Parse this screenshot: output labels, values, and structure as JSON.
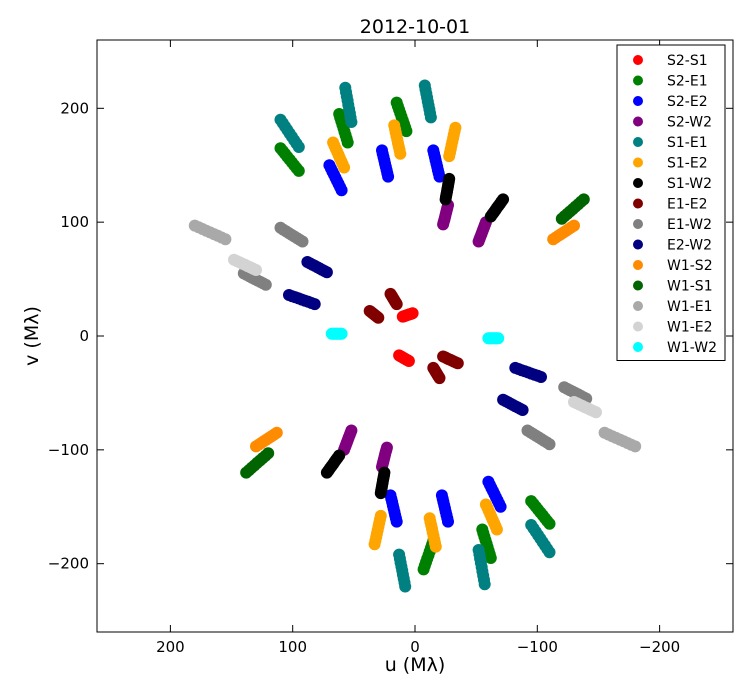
{
  "chart_data": {
    "type": "scatter",
    "title": "2012-10-01",
    "xlabel": "u (Mλ)",
    "ylabel": "v (Mλ)",
    "xlim": [
      260,
      -260
    ],
    "ylim": [
      -260,
      260
    ],
    "x_reversed": true,
    "xticks": [
      200,
      100,
      0,
      -100,
      -200
    ],
    "xtick_labels": [
      "200",
      "100",
      "0",
      "−100",
      "−200"
    ],
    "yticks": [
      200,
      100,
      0,
      -100,
      -200
    ],
    "ytick_labels": [
      "200",
      "100",
      "0",
      "−100",
      "−200"
    ],
    "grid": false,
    "legend_position": "top-right",
    "series": [
      {
        "name": "S2-S1",
        "color": "#ff0000",
        "tracks": [
          [
            [
              2,
              20
            ],
            [
              10,
              17
            ]
          ],
          [
            [
              13,
              -17
            ],
            [
              5,
              -22
            ]
          ]
        ]
      },
      {
        "name": "S2-E1",
        "color": "#008000",
        "tracks": [
          [
            [
              110,
              165
            ],
            [
              95,
              145
            ]
          ],
          [
            [
              62,
              195
            ],
            [
              55,
              170
            ]
          ],
          [
            [
              15,
              205
            ],
            [
              7,
              180
            ]
          ],
          [
            [
              -7,
              -205
            ],
            [
              -15,
              -180
            ]
          ],
          [
            [
              -55,
              -170
            ],
            [
              -62,
              -195
            ]
          ],
          [
            [
              -95,
              -145
            ],
            [
              -110,
              -165
            ]
          ]
        ]
      },
      {
        "name": "S2-E2",
        "color": "#0000ff",
        "tracks": [
          [
            [
              70,
              150
            ],
            [
              60,
              128
            ]
          ],
          [
            [
              27,
              163
            ],
            [
              22,
              140
            ]
          ],
          [
            [
              -15,
              163
            ],
            [
              -20,
              140
            ]
          ],
          [
            [
              20,
              -140
            ],
            [
              15,
              -163
            ]
          ],
          [
            [
              -22,
              -140
            ],
            [
              -27,
              -163
            ]
          ],
          [
            [
              -60,
              -128
            ],
            [
              -70,
              -150
            ]
          ]
        ]
      },
      {
        "name": "S2-W2",
        "color": "#800080",
        "tracks": [
          [
            [
              -27,
              115
            ],
            [
              -23,
              98
            ]
          ],
          [
            [
              -58,
              100
            ],
            [
              -52,
              83
            ]
          ],
          [
            [
              52,
              -83
            ],
            [
              58,
              -100
            ]
          ],
          [
            [
              23,
              -98
            ],
            [
              27,
              -115
            ]
          ]
        ]
      },
      {
        "name": "S1-E1",
        "color": "#008080",
        "tracks": [
          [
            [
              110,
              190
            ],
            [
              95,
              166
            ]
          ],
          [
            [
              57,
              218
            ],
            [
              52,
              188
            ]
          ],
          [
            [
              -8,
              220
            ],
            [
              -13,
              192
            ]
          ],
          [
            [
              13,
              -192
            ],
            [
              8,
              -220
            ]
          ],
          [
            [
              -52,
              -188
            ],
            [
              -57,
              -218
            ]
          ],
          [
            [
              -95,
              -166
            ],
            [
              -110,
              -190
            ]
          ]
        ]
      },
      {
        "name": "S1-E2",
        "color": "#ffa500",
        "tracks": [
          [
            [
              67,
              170
            ],
            [
              58,
              148
            ]
          ],
          [
            [
              17,
              185
            ],
            [
              12,
              160
            ]
          ],
          [
            [
              -33,
              183
            ],
            [
              -28,
              158
            ]
          ],
          [
            [
              28,
              -158
            ],
            [
              33,
              -183
            ]
          ],
          [
            [
              -12,
              -160
            ],
            [
              -17,
              -185
            ]
          ],
          [
            [
              -58,
              -148
            ],
            [
              -67,
              -170
            ]
          ]
        ]
      },
      {
        "name": "S1-W2",
        "color": "#000000",
        "tracks": [
          [
            [
              -28,
              138
            ],
            [
              -25,
              120
            ]
          ],
          [
            [
              -72,
              120
            ],
            [
              -62,
              105
            ]
          ],
          [
            [
              62,
              -105
            ],
            [
              72,
              -120
            ]
          ],
          [
            [
              25,
              -120
            ],
            [
              28,
              -138
            ]
          ]
        ]
      },
      {
        "name": "E1-E2",
        "color": "#800000",
        "tracks": [
          [
            [
              20,
              37
            ],
            [
              15,
              28
            ]
          ],
          [
            [
              37,
              22
            ],
            [
              30,
              16
            ]
          ],
          [
            [
              -23,
              -18
            ],
            [
              -35,
              -24
            ]
          ],
          [
            [
              -15,
              -28
            ],
            [
              -20,
              -37
            ]
          ]
        ]
      },
      {
        "name": "E1-W2",
        "color": "#808080",
        "tracks": [
          [
            [
              110,
              95
            ],
            [
              92,
              83
            ]
          ],
          [
            [
              140,
              55
            ],
            [
              122,
              45
            ]
          ],
          [
            [
              -122,
              -45
            ],
            [
              -140,
              -55
            ]
          ],
          [
            [
              -92,
              -83
            ],
            [
              -110,
              -95
            ]
          ]
        ]
      },
      {
        "name": "E2-W2",
        "color": "#000080",
        "tracks": [
          [
            [
              88,
              65
            ],
            [
              72,
              56
            ]
          ],
          [
            [
              103,
              36
            ],
            [
              82,
              28
            ]
          ],
          [
            [
              -82,
              -28
            ],
            [
              -103,
              -36
            ]
          ],
          [
            [
              -72,
              -56
            ],
            [
              -88,
              -65
            ]
          ]
        ]
      },
      {
        "name": "W1-S2",
        "color": "#ff8c00",
        "tracks": [
          [
            [
              -113,
              85
            ],
            [
              -130,
              97
            ]
          ],
          [
            [
              130,
              -97
            ],
            [
              113,
              -85
            ]
          ]
        ]
      },
      {
        "name": "W1-S1",
        "color": "#006400",
        "tracks": [
          [
            [
              -120,
              103
            ],
            [
              -138,
              120
            ]
          ],
          [
            [
              138,
              -120
            ],
            [
              120,
              -103
            ]
          ]
        ]
      },
      {
        "name": "W1-E1",
        "color": "#a9a9a9",
        "tracks": [
          [
            [
              180,
              97
            ],
            [
              155,
              85
            ]
          ],
          [
            [
              -155,
              -85
            ],
            [
              -180,
              -97
            ]
          ]
        ]
      },
      {
        "name": "W1-E2",
        "color": "#d3d3d3",
        "tracks": [
          [
            [
              148,
              67
            ],
            [
              130,
              58
            ]
          ],
          [
            [
              -130,
              -58
            ],
            [
              -148,
              -67
            ]
          ]
        ]
      },
      {
        "name": "W1-W2",
        "color": "#00ffff",
        "tracks": [
          [
            [
              68,
              2
            ],
            [
              60,
              2
            ]
          ],
          [
            [
              -60,
              -2
            ],
            [
              -68,
              -2
            ]
          ]
        ]
      }
    ]
  }
}
